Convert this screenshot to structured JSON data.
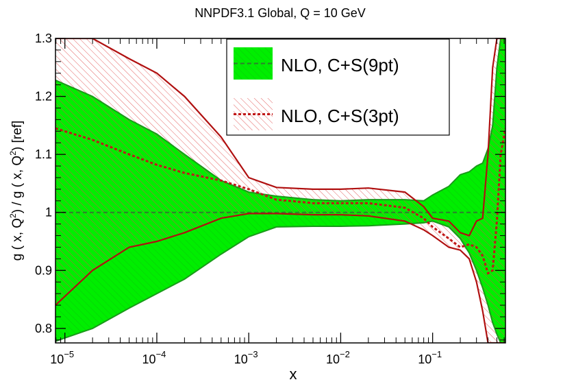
{
  "chart_data": {
    "type": "line",
    "title": "NNPDF3.1 Global, Q = 10 GeV",
    "xlabel": "x",
    "ylabel": "g ( x, Q²) / g ( x, Q²) [ref]",
    "xscale": "log",
    "xlim": [
      7.9e-06,
      0.62
    ],
    "ylim": [
      0.775,
      1.3
    ],
    "x_ticks": [
      {
        "value": 1e-05,
        "base": "10",
        "exp": "−5"
      },
      {
        "value": 0.0001,
        "base": "10",
        "exp": "−4"
      },
      {
        "value": 0.001,
        "base": "10",
        "exp": "−3"
      },
      {
        "value": 0.01,
        "base": "10",
        "exp": "−2"
      },
      {
        "value": 0.1,
        "base": "10",
        "exp": "−1"
      }
    ],
    "y_ticks": [
      {
        "value": 0.8,
        "label": "0.8"
      },
      {
        "value": 0.9,
        "label": "0.9"
      },
      {
        "value": 1.0,
        "label": "1"
      },
      {
        "value": 1.1,
        "label": "1.1"
      },
      {
        "value": 1.2,
        "label": "1.2"
      },
      {
        "value": 1.3,
        "label": "1.3"
      }
    ],
    "legend_position": "top-right",
    "series": [
      {
        "name": "NLO, C+S(9pt)",
        "style": "solid band with dashed central line",
        "band_color": "#00ee00",
        "edge_color": "#1a9a1a",
        "line_color": "#2e7d2e",
        "x": [
          7.9e-06,
          2e-05,
          5e-05,
          0.0001,
          0.0002,
          0.0005,
          0.001,
          0.002,
          0.005,
          0.01,
          0.02,
          0.05,
          0.08,
          0.1,
          0.15,
          0.2,
          0.25,
          0.3,
          0.35,
          0.4,
          0.45,
          0.5,
          0.55,
          0.62
        ],
        "central": [
          1.0,
          1.0,
          1.0,
          1.0,
          1.0,
          1.0,
          1.0,
          1.0,
          1.0,
          1.0,
          1.0,
          1.0,
          1.0,
          1.0,
          1.0,
          1.0,
          1.0,
          1.0,
          1.0,
          1.0,
          1.0,
          1.0,
          1.0,
          1.0
        ],
        "upper": [
          1.228,
          1.2,
          1.16,
          1.135,
          1.1,
          1.055,
          1.035,
          1.028,
          1.022,
          1.02,
          1.022,
          1.022,
          1.02,
          1.03,
          1.045,
          1.065,
          1.07,
          1.08,
          1.085,
          1.11,
          1.15,
          1.25,
          1.3,
          1.3
        ],
        "lower": [
          0.778,
          0.8,
          0.835,
          0.86,
          0.885,
          0.928,
          0.958,
          0.975,
          0.976,
          0.976,
          0.977,
          0.98,
          0.982,
          0.985,
          0.975,
          0.955,
          0.93,
          0.9,
          0.87,
          0.84,
          0.81,
          0.79,
          0.775,
          0.775
        ]
      },
      {
        "name": "NLO, C+S(3pt)",
        "style": "hatched band with dashed central line",
        "band_color": "#f0a0a0",
        "edge_color": "#b01010",
        "line_color": "#c01818",
        "x": [
          7.9e-06,
          2e-05,
          5e-05,
          0.0001,
          0.0002,
          0.0005,
          0.001,
          0.002,
          0.005,
          0.01,
          0.02,
          0.05,
          0.08,
          0.1,
          0.15,
          0.2,
          0.25,
          0.3,
          0.35,
          0.4,
          0.45,
          0.5,
          0.55,
          0.62
        ],
        "central": [
          1.145,
          1.125,
          1.1,
          1.082,
          1.068,
          1.055,
          1.04,
          1.022,
          1.016,
          1.016,
          1.016,
          1.008,
          0.99,
          0.975,
          0.955,
          0.94,
          0.945,
          0.94,
          0.925,
          0.895,
          0.9,
          0.985,
          1.1,
          1.145
        ],
        "upper": [
          1.3,
          1.3,
          1.265,
          1.24,
          1.2,
          1.13,
          1.06,
          1.043,
          1.04,
          1.04,
          1.042,
          1.035,
          1.01,
          0.99,
          0.985,
          0.965,
          0.96,
          0.985,
          0.99,
          1.1,
          1.25,
          1.3,
          1.3,
          1.3
        ],
        "lower": [
          0.84,
          0.9,
          0.94,
          0.95,
          0.965,
          0.99,
          0.998,
          0.998,
          0.996,
          0.996,
          0.994,
          0.985,
          0.97,
          0.96,
          0.94,
          0.935,
          0.92,
          0.88,
          0.83,
          0.775,
          0.775,
          0.775,
          0.775,
          0.775
        ]
      }
    ]
  }
}
